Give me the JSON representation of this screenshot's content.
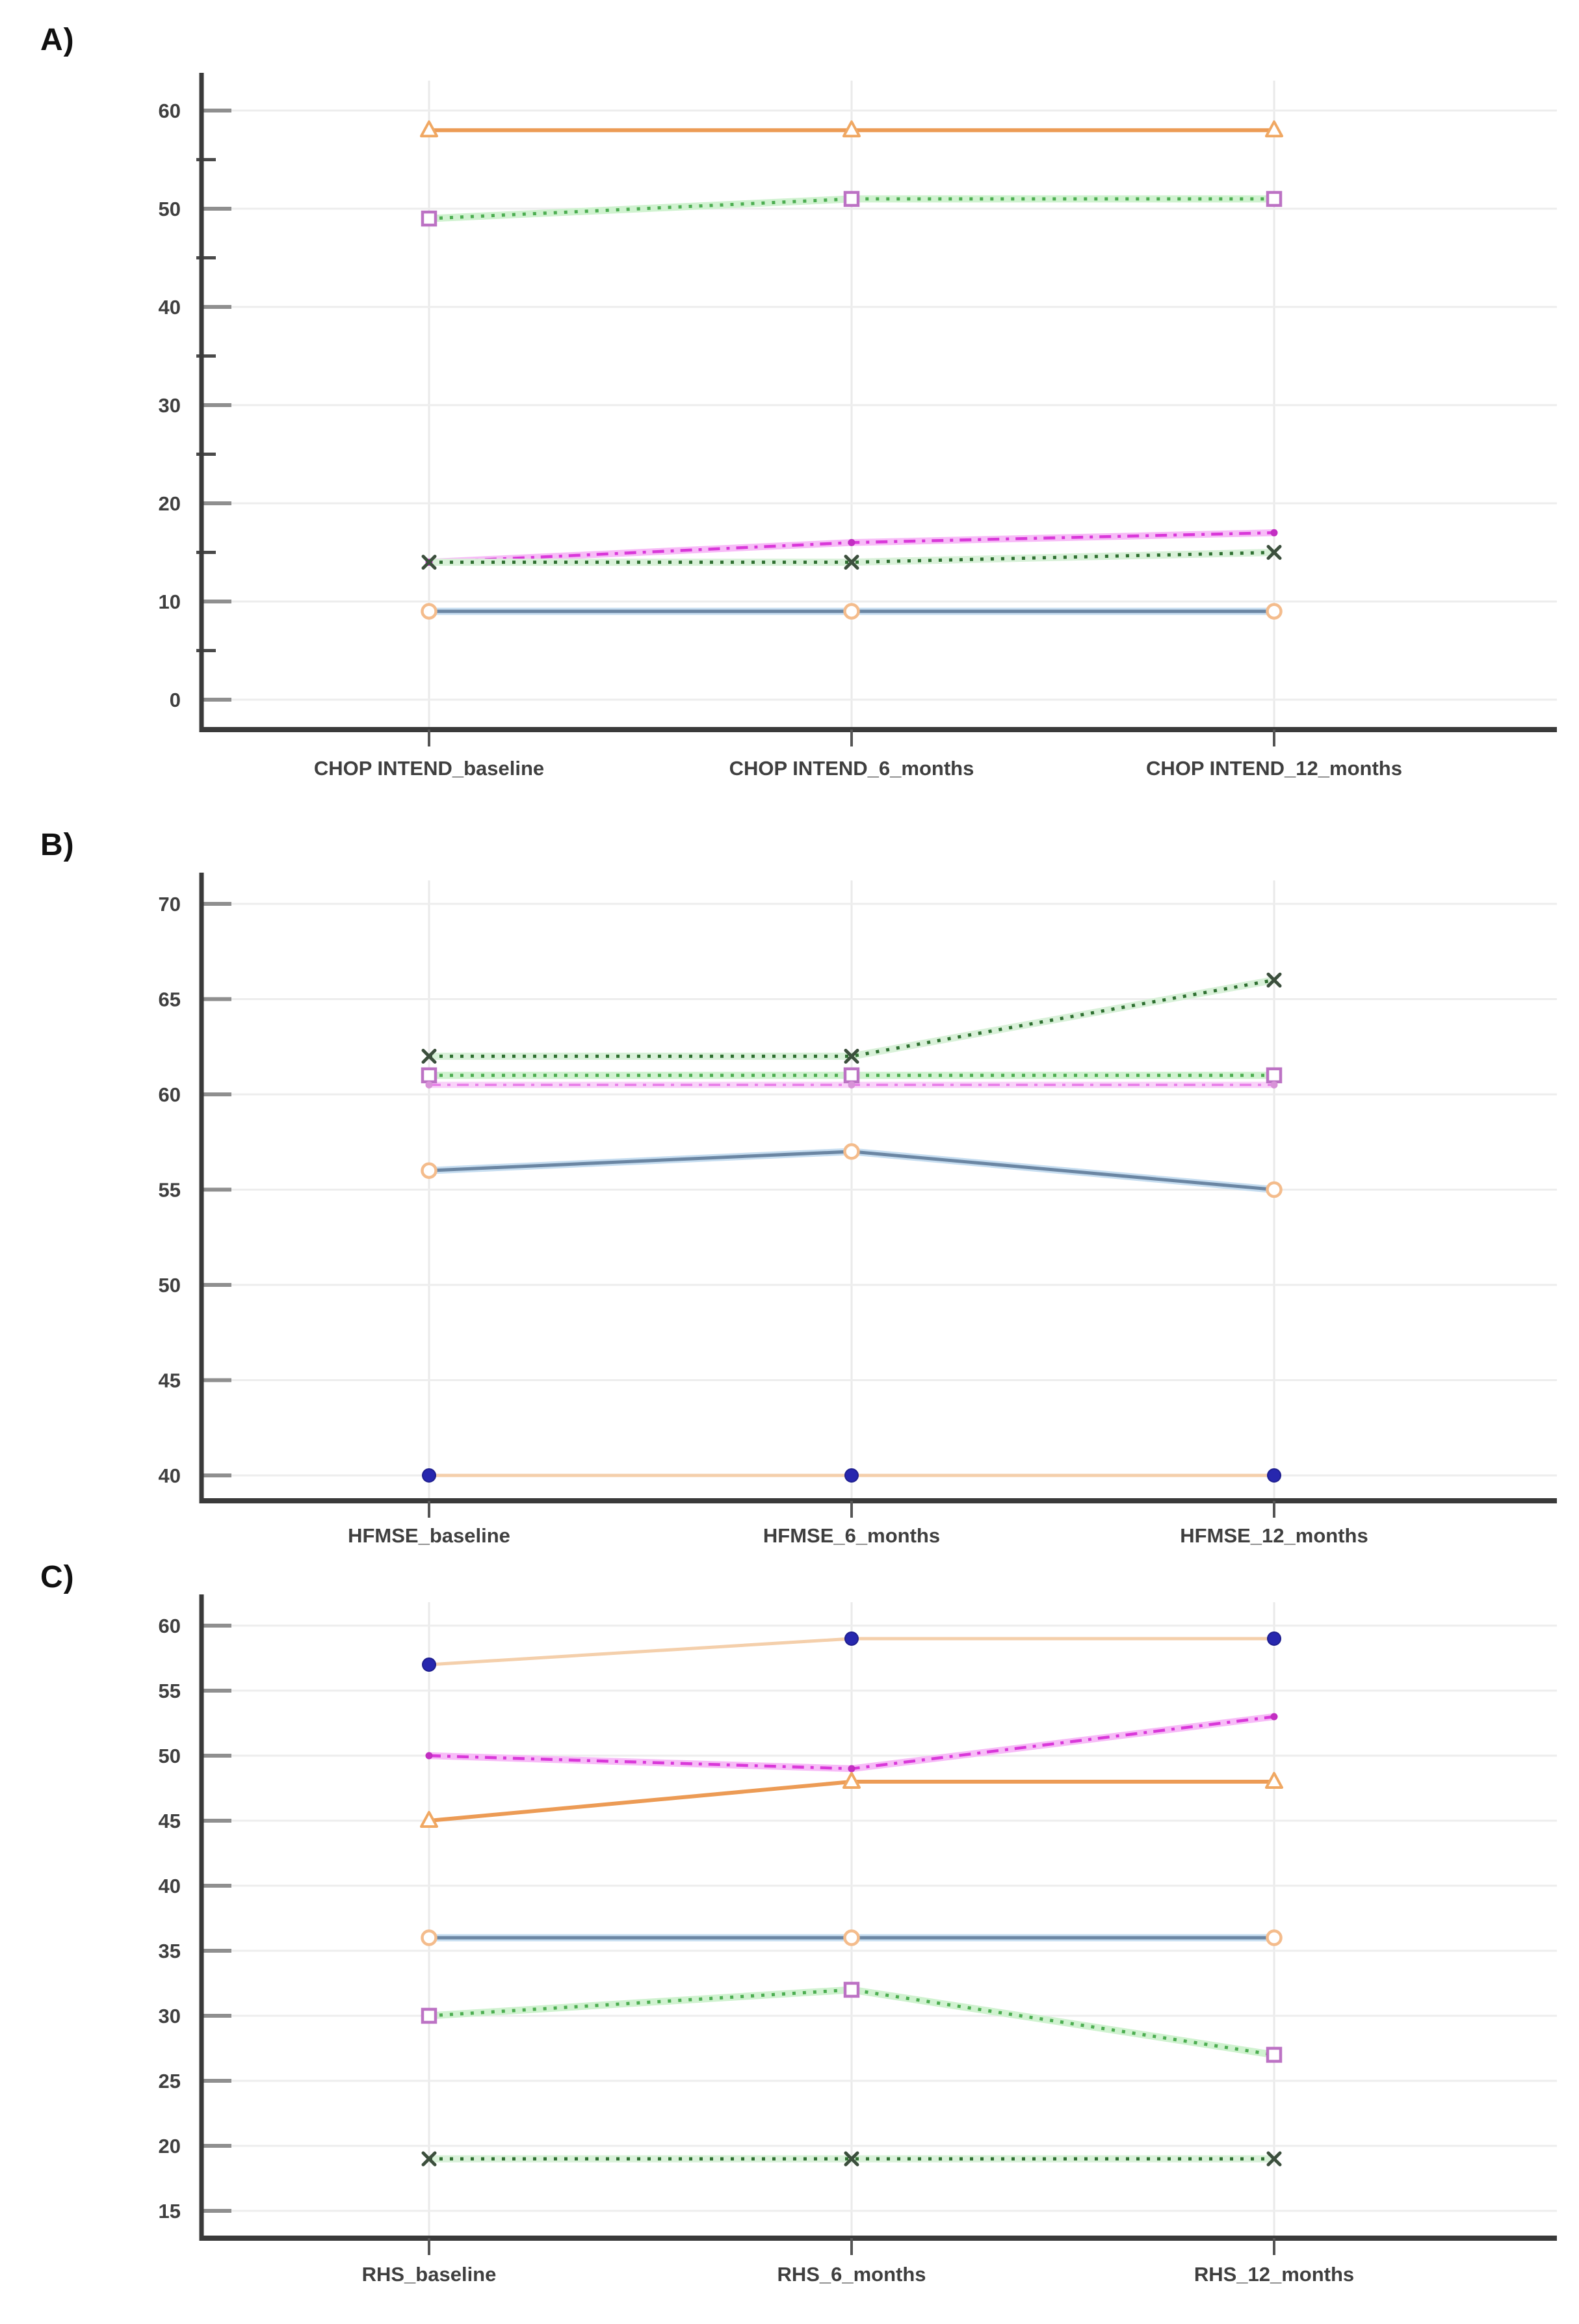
{
  "panels": [
    {
      "label": "A)",
      "chart_data": {
        "type": "line",
        "title": "",
        "xlabel": "",
        "ylabel": "",
        "x_categories": [
          "CHOP INTEND_baseline",
          "CHOP INTEND_6_months",
          "CHOP INTEND_12_months"
        ],
        "ylim": [
          0,
          62
        ],
        "yticks": [
          0,
          10,
          20,
          30,
          40,
          50,
          60
        ],
        "yticks_minor": [
          5,
          15,
          25,
          35,
          45,
          55
        ],
        "grid": "horizontal-and-column",
        "legend_position": "none",
        "series": [
          {
            "name": "orange-triangle-patient",
            "values": [
              58,
              58,
              58
            ],
            "line_color": "#EC9B55",
            "line_style": "solid",
            "line_width": 6,
            "marker": "triangle",
            "marker_stroke": "#F0A863",
            "marker_fill": "#FFFFFF"
          },
          {
            "name": "green-dashed-pink-square-patient",
            "values": [
              49,
              51,
              51
            ],
            "line_color": "#4DAE51",
            "underlay_color": "#D0F2D0",
            "line_style": "dotted",
            "line_width": 5,
            "marker": "square",
            "marker_stroke": "#BC72C4",
            "marker_fill": "#FFFFFF"
          },
          {
            "name": "magenta-dashdot-patient",
            "values": [
              14,
              16,
              17
            ],
            "line_color": "#D938D9",
            "underlay_color": "#F7BCF7",
            "line_style": "dashdot",
            "line_width": 4.5,
            "marker": "smalldot",
            "marker_fill": "#C22EC2"
          },
          {
            "name": "darkgreen-x-patient",
            "values": [
              14,
              14,
              15
            ],
            "line_color": "#2F7031",
            "underlay_color": "#D9F1D9",
            "line_style": "dotted",
            "line_width": 5,
            "marker": "x",
            "marker_stroke": "#3C4F3D"
          },
          {
            "name": "blue-orange-circle-patient",
            "values": [
              9,
              9,
              9
            ],
            "line_color": "#6B86A3",
            "underlay_color": "#C6DDF0",
            "line_style": "solid",
            "line_width": 5,
            "marker": "circle",
            "marker_stroke": "#F4BC8C",
            "marker_fill": "#FFFFFF"
          }
        ]
      }
    },
    {
      "label": "B)",
      "chart_data": {
        "type": "line",
        "title": "",
        "xlabel": "",
        "ylabel": "",
        "x_categories": [
          "HFMSE_baseline",
          "HFMSE_6_months",
          "HFMSE_12_months"
        ],
        "ylim": [
          40,
          71
        ],
        "yticks": [
          40,
          45,
          50,
          55,
          60,
          65,
          70
        ],
        "grid": "horizontal-and-column",
        "legend_position": "none",
        "series": [
          {
            "name": "darkgreen-x-patient",
            "values": [
              62,
              62,
              66
            ],
            "line_color": "#2F7031",
            "underlay_color": "#D9F1D9",
            "line_style": "dotted",
            "line_width": 5,
            "marker": "x",
            "marker_stroke": "#3C4F3D"
          },
          {
            "name": "green-dashed-pink-square-patient",
            "values": [
              61,
              61,
              61
            ],
            "line_color": "#4DAE51",
            "underlay_color": "#D0F2D0",
            "line_style": "dotted",
            "line_width": 5,
            "marker": "square",
            "marker_stroke": "#BC72C4",
            "marker_fill": "#FFFFFF"
          },
          {
            "name": "magenta-dashdot-patient",
            "values": [
              60.5,
              60.5,
              60.5
            ],
            "line_color": "#E87CE8",
            "underlay_color": "#F9D2F9",
            "line_style": "dashdot",
            "line_width": 3.5,
            "marker": "smalldot",
            "marker_fill": "#D892D8"
          },
          {
            "name": "blue-orange-circle-patient",
            "values": [
              56,
              57,
              55
            ],
            "line_color": "#6B86A3",
            "underlay_color": "#C6DDF0",
            "line_style": "solid",
            "line_width": 5,
            "marker": "circle",
            "marker_stroke": "#F4BC8C",
            "marker_fill": "#FFFFFF"
          },
          {
            "name": "navy-dot-peach-line-patient",
            "values": [
              40,
              40,
              40
            ],
            "line_color": "#F4CFAB",
            "line_style": "solid",
            "line_width": 5,
            "marker": "dot",
            "marker_fill": "#2727AE",
            "marker_stroke": "#1F1F8F"
          }
        ]
      }
    },
    {
      "label": "C)",
      "chart_data": {
        "type": "line",
        "title": "",
        "xlabel": "",
        "ylabel": "",
        "x_categories": [
          "RHS_baseline",
          "RHS_6_months",
          "RHS_12_months"
        ],
        "ylim": [
          15,
          62
        ],
        "yticks": [
          15,
          20,
          25,
          30,
          35,
          40,
          45,
          50,
          55,
          60
        ],
        "grid": "horizontal-and-column",
        "legend_position": "none",
        "series": [
          {
            "name": "navy-dot-peach-line-patient",
            "values": [
              57,
              59,
              59
            ],
            "line_color": "#F4CFAB",
            "line_style": "solid",
            "line_width": 5,
            "marker": "dot",
            "marker_fill": "#2727AE",
            "marker_stroke": "#1F1F8F"
          },
          {
            "name": "magenta-dashdot-patient",
            "values": [
              50,
              49,
              53
            ],
            "line_color": "#D938D9",
            "underlay_color": "#F7BCF7",
            "line_style": "dashdot",
            "line_width": 4.5,
            "marker": "smalldot",
            "marker_fill": "#C22EC2"
          },
          {
            "name": "orange-triangle-patient",
            "values": [
              45,
              48,
              48
            ],
            "line_color": "#EC9B55",
            "line_style": "solid",
            "line_width": 6,
            "marker": "triangle",
            "marker_stroke": "#F0A863",
            "marker_fill": "#FFFFFF"
          },
          {
            "name": "blue-orange-circle-patient",
            "values": [
              36,
              36,
              36
            ],
            "line_color": "#6B86A3",
            "underlay_color": "#C6DDF0",
            "line_style": "solid",
            "line_width": 5,
            "marker": "circle",
            "marker_stroke": "#F4BC8C",
            "marker_fill": "#FFFFFF"
          },
          {
            "name": "green-dashed-pink-square-patient",
            "values": [
              30,
              32,
              27
            ],
            "line_color": "#4DAE51",
            "underlay_color": "#D0F2D0",
            "line_style": "dotted",
            "line_width": 5,
            "marker": "square",
            "marker_stroke": "#BC72C4",
            "marker_fill": "#FFFFFF"
          },
          {
            "name": "darkgreen-x-patient",
            "values": [
              19,
              19,
              19
            ],
            "line_color": "#2F7031",
            "underlay_color": "#D9F1D9",
            "line_style": "dotted",
            "line_width": 5,
            "marker": "x",
            "marker_stroke": "#3C4F3D"
          }
        ]
      }
    }
  ]
}
